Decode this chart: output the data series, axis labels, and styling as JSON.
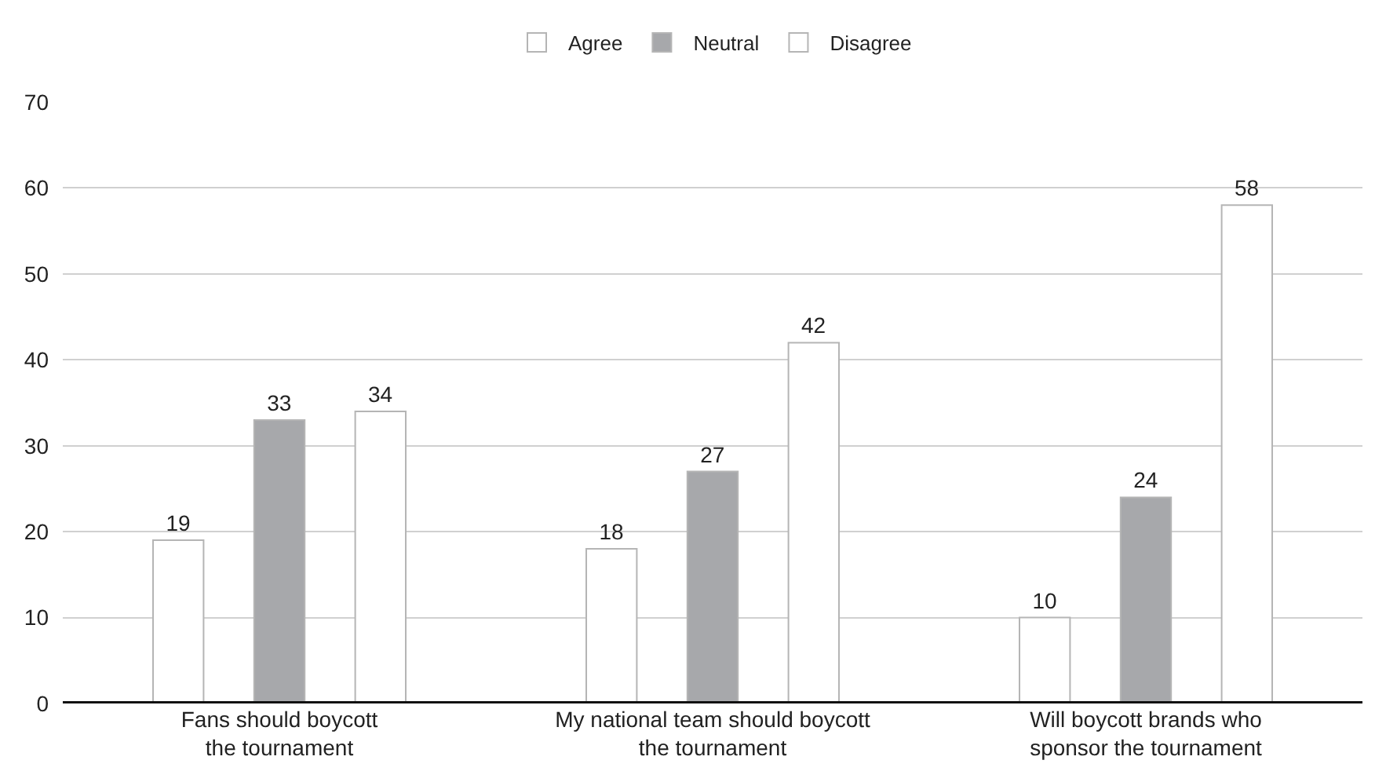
{
  "chart_data": {
    "type": "bar",
    "categories": [
      "Fans should boycott\nthe tournament",
      "My national team should boycott\nthe tournament",
      "Will boycott brands who\nsponsor the tournament"
    ],
    "series": [
      {
        "name": "Agree",
        "color": "#ffffff",
        "values": [
          19,
          18,
          10
        ]
      },
      {
        "name": "Neutral",
        "color": "#a7a8ab",
        "values": [
          33,
          27,
          24
        ]
      },
      {
        "name": "Disagree",
        "color": "#ffffff",
        "values": [
          34,
          42,
          58
        ]
      }
    ],
    "ylim": [
      0,
      70
    ],
    "yticks": [
      0,
      10,
      20,
      30,
      40,
      50,
      60,
      70
    ],
    "grid": "y",
    "legend": "top",
    "data_labels": true
  }
}
